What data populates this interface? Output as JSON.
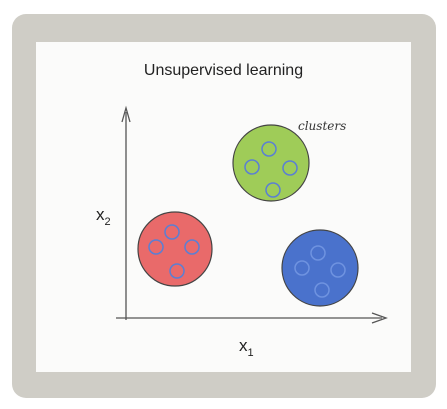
{
  "title": "Unsupervised learning",
  "annotation": "clusters",
  "axes": {
    "x_label": "x",
    "x_subscript": "1",
    "y_label": "x",
    "y_subscript": "2"
  },
  "clusters": [
    {
      "name": "red-cluster",
      "fill": "#e96a6a",
      "point_count": 4
    },
    {
      "name": "green-cluster",
      "fill": "#9fcc58",
      "point_count": 4
    },
    {
      "name": "blue-cluster",
      "fill": "#4a72cc",
      "point_count": 4
    }
  ],
  "colors": {
    "point_stroke": "#5a7fd4",
    "axis": "#555555",
    "outline": "#444444"
  }
}
